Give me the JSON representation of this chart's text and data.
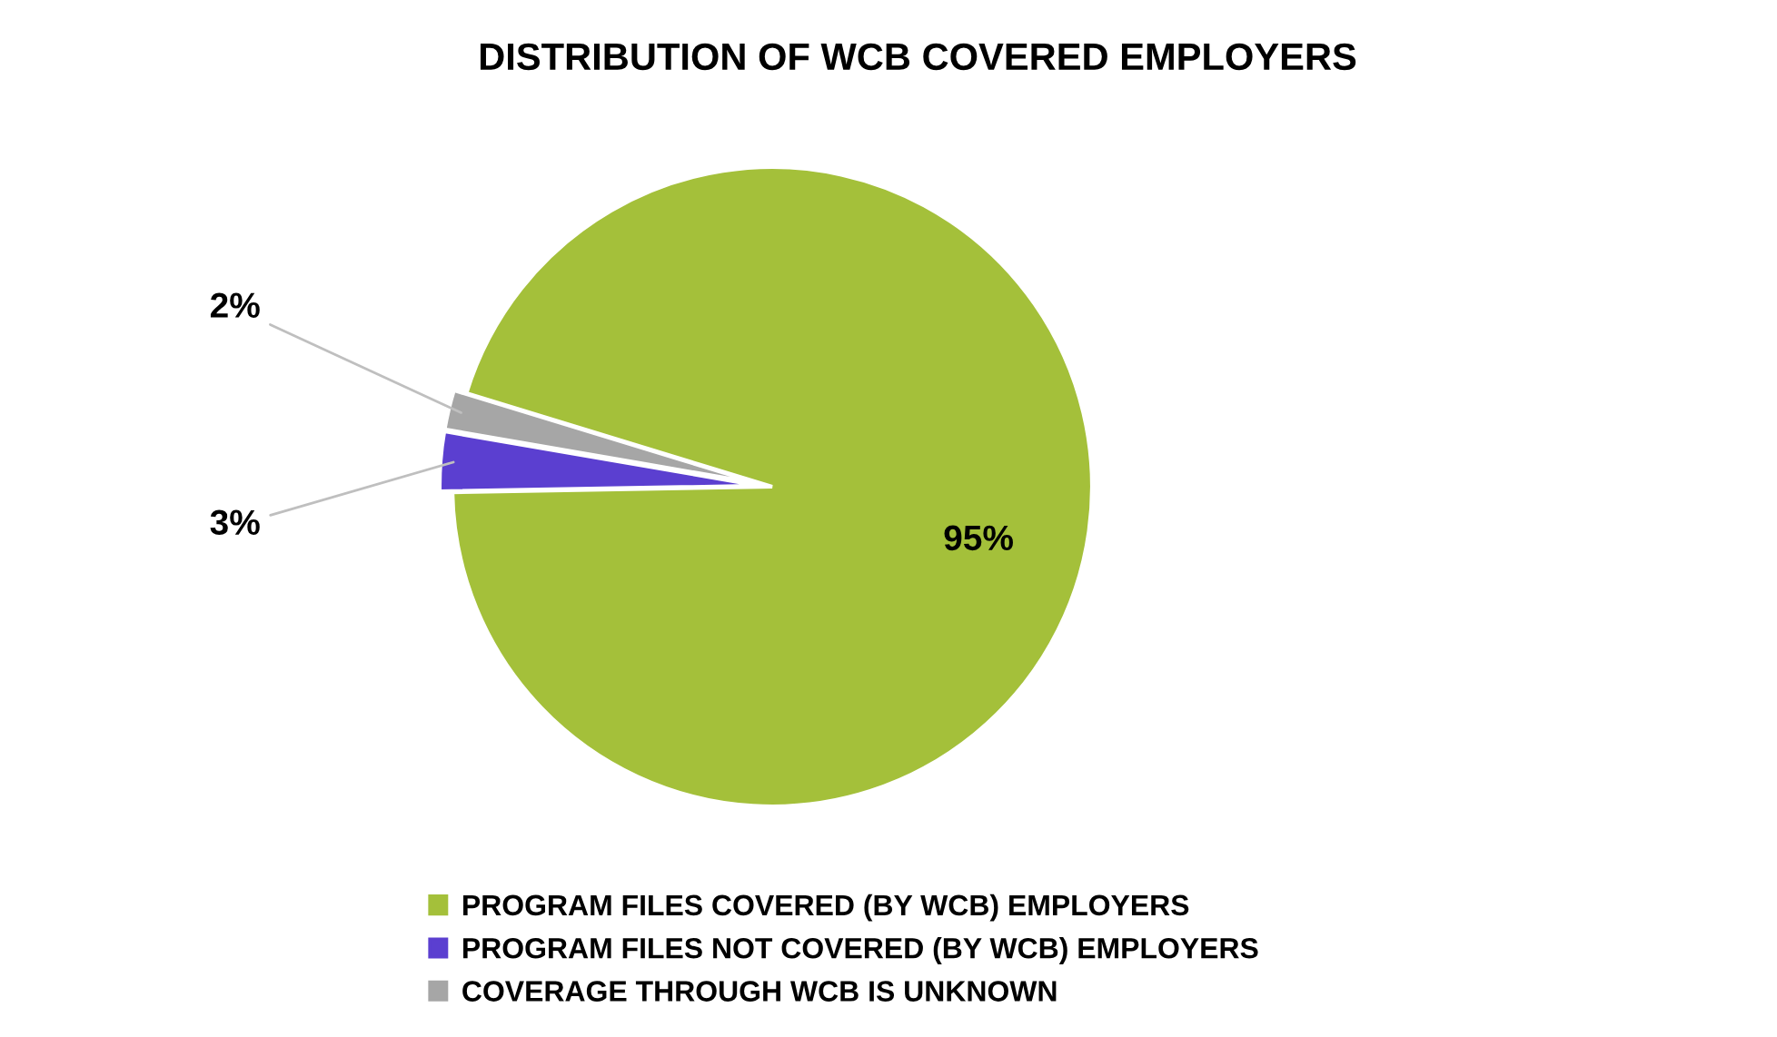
{
  "chart_data": {
    "type": "pie",
    "title": "DISTRIBUTION OF WCB COVERED EMPLOYERS",
    "categories": [
      "PROGRAM FILES COVERED (BY WCB) EMPLOYERS",
      "PROGRAM FILES NOT COVERED (BY WCB) EMPLOYERS",
      "COVERAGE THROUGH WCB IS UNKNOWN"
    ],
    "values": [
      95,
      3,
      2
    ],
    "colors": [
      "#a4c03a",
      "#5b3fd0",
      "#a6a6a6"
    ],
    "value_labels": [
      "95%",
      "3%",
      "2%"
    ],
    "legend": "bottom"
  }
}
